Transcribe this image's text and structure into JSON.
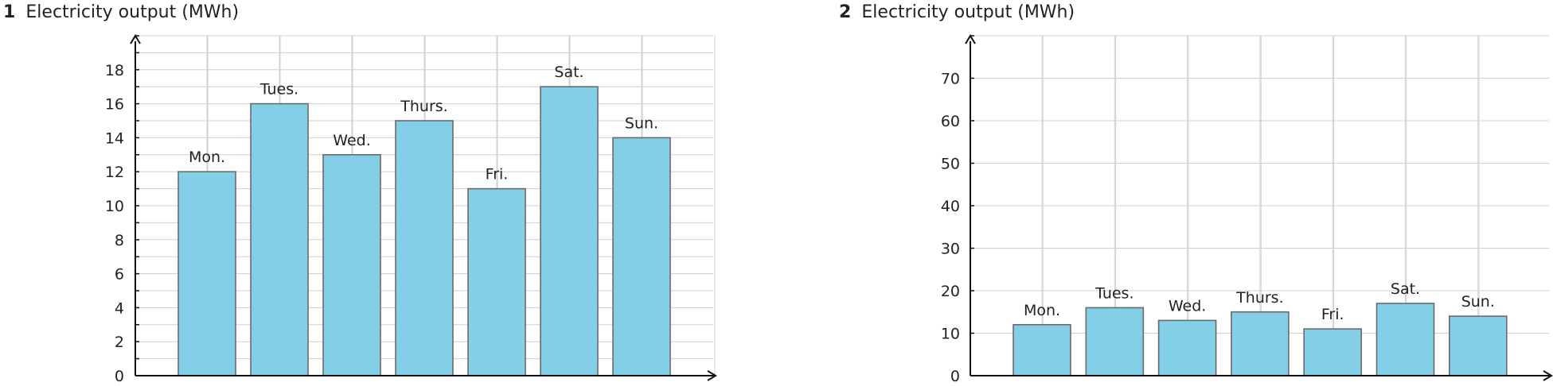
{
  "chart_data": [
    {
      "type": "bar",
      "number": "1",
      "title": "Electricity output (MWh)",
      "categories": [
        "Mon.",
        "Tues.",
        "Wed.",
        "Thurs.",
        "Fri.",
        "Sat.",
        "Sun."
      ],
      "values": [
        12,
        16,
        13,
        15,
        11,
        17,
        14
      ],
      "ylim": [
        0,
        20
      ],
      "yticks": [
        0,
        2,
        4,
        6,
        8,
        10,
        12,
        14,
        16,
        18
      ],
      "minor_step": 1,
      "grid": true,
      "bar_color": "#84cfe8",
      "xlabel": "",
      "ylabel": ""
    },
    {
      "type": "bar",
      "number": "2",
      "title": "Electricity output (MWh)",
      "categories": [
        "Mon.",
        "Tues.",
        "Wed.",
        "Thurs.",
        "Fri.",
        "Sat.",
        "Sun."
      ],
      "values": [
        12,
        16,
        13,
        15,
        11,
        17,
        14
      ],
      "ylim": [
        0,
        80
      ],
      "yticks": [
        0,
        10,
        20,
        30,
        40,
        50,
        60,
        70
      ],
      "minor_step": 10,
      "grid": true,
      "bar_color": "#84cfe8",
      "xlabel": "",
      "ylabel": ""
    }
  ]
}
